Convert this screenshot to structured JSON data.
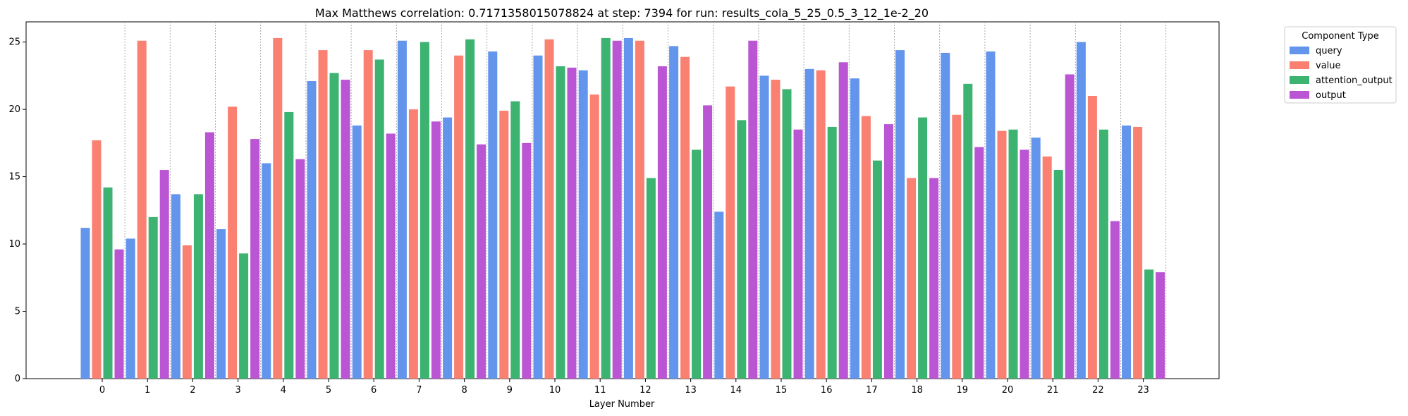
{
  "chart_data": {
    "type": "bar",
    "title": "Max Matthews correlation: 0.7171358015078824 at step: 7394 for run: results_cola_5_25_0.5_3_12_1e-2_20",
    "xlabel": "Layer Number",
    "ylabel": "",
    "ylim": [
      0,
      26.5
    ],
    "yticks": [
      0,
      5,
      10,
      15,
      20,
      25
    ],
    "categories": [
      "0",
      "1",
      "2",
      "3",
      "4",
      "5",
      "6",
      "7",
      "8",
      "9",
      "10",
      "11",
      "12",
      "13",
      "14",
      "15",
      "16",
      "17",
      "18",
      "19",
      "20",
      "21",
      "22",
      "23"
    ],
    "legend_title": "Component Type",
    "legend_position": "outside-top-right",
    "series": [
      {
        "name": "query",
        "color": "#6495ED",
        "values": [
          11.2,
          10.4,
          13.7,
          11.1,
          16.0,
          22.1,
          18.8,
          25.1,
          19.4,
          24.3,
          24.0,
          22.9,
          25.3,
          24.7,
          12.4,
          22.5,
          23.0,
          22.3,
          24.4,
          24.2,
          24.3,
          17.9,
          25.0,
          18.8
        ]
      },
      {
        "name": "value",
        "color": "#FA8072",
        "values": [
          17.7,
          25.1,
          9.9,
          20.2,
          25.3,
          24.4,
          24.4,
          20.0,
          24.0,
          19.9,
          25.2,
          21.1,
          25.1,
          23.9,
          21.7,
          22.2,
          22.9,
          19.5,
          14.9,
          19.6,
          18.4,
          16.5,
          21.0,
          18.7
        ]
      },
      {
        "name": "attention_output",
        "color": "#3CB371",
        "values": [
          14.2,
          12.0,
          13.7,
          9.3,
          19.8,
          22.7,
          23.7,
          25.0,
          25.2,
          20.6,
          23.2,
          25.3,
          14.9,
          17.0,
          19.2,
          21.5,
          18.7,
          16.2,
          19.4,
          21.9,
          18.5,
          15.5,
          18.5,
          8.1
        ]
      },
      {
        "name": "output",
        "color": "#BA55D3",
        "values": [
          9.6,
          15.5,
          18.3,
          17.8,
          16.3,
          22.2,
          18.2,
          19.1,
          17.4,
          17.5,
          23.1,
          25.1,
          23.2,
          20.3,
          25.1,
          18.5,
          23.5,
          18.9,
          14.9,
          17.2,
          17.0,
          22.6,
          11.7,
          7.9
        ]
      }
    ]
  }
}
